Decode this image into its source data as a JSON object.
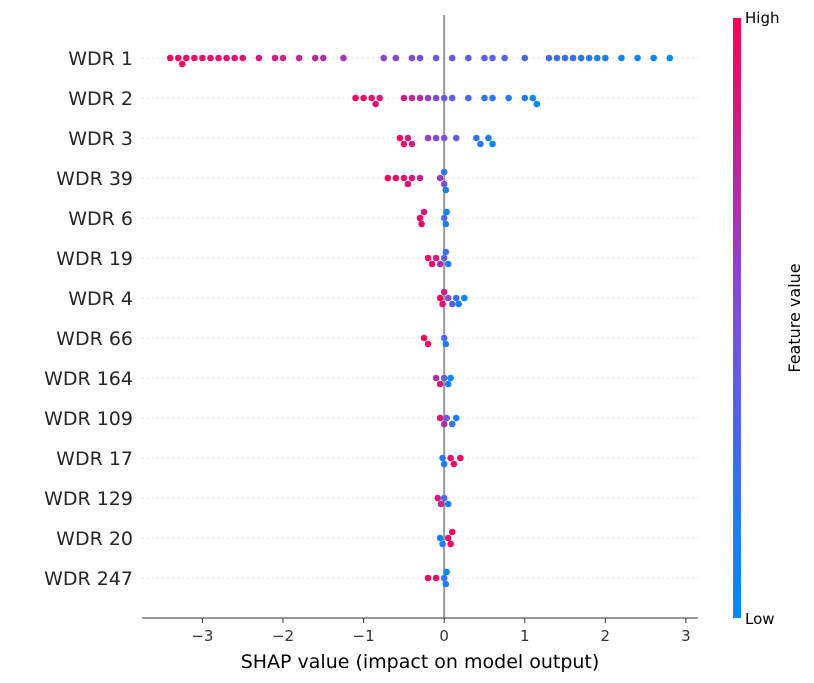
{
  "chart_data": {
    "type": "scatter",
    "subtype": "shap-beeswarm",
    "xlabel": "SHAP value (impact on model output)",
    "xlim": [
      -3.75,
      3.15
    ],
    "xticks": [
      -3,
      -2,
      -1,
      0,
      1,
      2,
      3
    ],
    "xtick_labels": [
      "−3",
      "−2",
      "−1",
      "0",
      "1",
      "2",
      "3"
    ],
    "colorbar": {
      "title": "Feature value",
      "high_label": "High",
      "low_label": "Low",
      "high_color": "#ff0052",
      "low_color": "#008bfb"
    },
    "features": [
      {
        "name": "WDR 1",
        "points": [
          [
            -3.4,
            0.98
          ],
          [
            -3.3,
            0.96
          ],
          [
            -3.25,
            0.95
          ],
          [
            -3.2,
            0.94
          ],
          [
            -3.1,
            0.93
          ],
          [
            -3.0,
            0.92
          ],
          [
            -2.9,
            0.91
          ],
          [
            -2.8,
            0.9
          ],
          [
            -2.7,
            0.89
          ],
          [
            -2.6,
            0.87
          ],
          [
            -2.5,
            0.86
          ],
          [
            -2.3,
            0.83
          ],
          [
            -2.1,
            0.8
          ],
          [
            -2.0,
            0.78
          ],
          [
            -1.8,
            0.76
          ],
          [
            -1.6,
            0.74
          ],
          [
            -1.5,
            0.72
          ],
          [
            -1.25,
            0.66
          ],
          [
            -0.75,
            0.58
          ],
          [
            -0.6,
            0.55
          ],
          [
            -0.4,
            0.52
          ],
          [
            -0.3,
            0.5
          ],
          [
            -0.1,
            0.47
          ],
          [
            0.1,
            0.44
          ],
          [
            0.3,
            0.4
          ],
          [
            0.5,
            0.37
          ],
          [
            0.6,
            0.35
          ],
          [
            0.75,
            0.33
          ],
          [
            1.0,
            0.29
          ],
          [
            1.3,
            0.25
          ],
          [
            1.4,
            0.22
          ],
          [
            1.5,
            0.2
          ],
          [
            1.6,
            0.18
          ],
          [
            1.7,
            0.15
          ],
          [
            1.8,
            0.13
          ],
          [
            1.9,
            0.1
          ],
          [
            2.0,
            0.08
          ],
          [
            2.2,
            0.06
          ],
          [
            2.4,
            0.04
          ],
          [
            2.6,
            0.02
          ],
          [
            2.8,
            0.0
          ]
        ]
      },
      {
        "name": "WDR 2",
        "points": [
          [
            -1.1,
            0.95
          ],
          [
            -1.0,
            0.93
          ],
          [
            -0.9,
            0.9
          ],
          [
            -0.85,
            0.88
          ],
          [
            -0.8,
            0.86
          ],
          [
            -0.5,
            0.8
          ],
          [
            -0.4,
            0.75
          ],
          [
            -0.3,
            0.7
          ],
          [
            -0.2,
            0.62
          ],
          [
            -0.1,
            0.55
          ],
          [
            0.0,
            0.45
          ],
          [
            0.1,
            0.38
          ],
          [
            0.3,
            0.3
          ],
          [
            0.5,
            0.22
          ],
          [
            0.6,
            0.18
          ],
          [
            0.8,
            0.12
          ],
          [
            1.0,
            0.08
          ],
          [
            1.1,
            0.04
          ],
          [
            1.15,
            0.02
          ]
        ]
      },
      {
        "name": "WDR 3",
        "points": [
          [
            -0.55,
            0.95
          ],
          [
            -0.5,
            0.9
          ],
          [
            -0.45,
            0.85
          ],
          [
            -0.4,
            0.78
          ],
          [
            -0.2,
            0.6
          ],
          [
            -0.1,
            0.55
          ],
          [
            0.0,
            0.5
          ],
          [
            0.15,
            0.4
          ],
          [
            0.4,
            0.2
          ],
          [
            0.45,
            0.15
          ],
          [
            0.55,
            0.1
          ],
          [
            0.6,
            0.05
          ]
        ]
      },
      {
        "name": "WDR 39",
        "points": [
          [
            -0.7,
            0.98
          ],
          [
            -0.6,
            0.95
          ],
          [
            -0.5,
            0.92
          ],
          [
            -0.45,
            0.9
          ],
          [
            -0.4,
            0.88
          ],
          [
            -0.3,
            0.8
          ],
          [
            -0.05,
            0.62
          ],
          [
            0.0,
            0.5
          ],
          [
            0.0,
            0.2
          ],
          [
            0.02,
            0.05
          ]
        ]
      },
      {
        "name": "WDR 6",
        "points": [
          [
            -0.3,
            0.95
          ],
          [
            -0.28,
            0.9
          ],
          [
            -0.25,
            0.85
          ],
          [
            0.0,
            0.3
          ],
          [
            0.02,
            0.1
          ],
          [
            0.03,
            0.05
          ]
        ]
      },
      {
        "name": "WDR 19",
        "points": [
          [
            -0.2,
            0.95
          ],
          [
            -0.15,
            0.92
          ],
          [
            -0.1,
            0.85
          ],
          [
            -0.05,
            0.7
          ],
          [
            0.0,
            0.35
          ],
          [
            0.02,
            0.2
          ],
          [
            0.05,
            0.1
          ]
        ]
      },
      {
        "name": "WDR 4",
        "points": [
          [
            -0.05,
            0.95
          ],
          [
            -0.02,
            0.9
          ],
          [
            0.0,
            0.8
          ],
          [
            0.05,
            0.5
          ],
          [
            0.1,
            0.35
          ],
          [
            0.15,
            0.2
          ],
          [
            0.18,
            0.1
          ],
          [
            0.25,
            0.05
          ]
        ]
      },
      {
        "name": "WDR 66",
        "points": [
          [
            -0.25,
            0.95
          ],
          [
            -0.2,
            0.92
          ],
          [
            0.0,
            0.3
          ],
          [
            0.02,
            0.1
          ]
        ]
      },
      {
        "name": "WDR 164",
        "points": [
          [
            -0.1,
            0.7
          ],
          [
            -0.05,
            0.85
          ],
          [
            0.0,
            0.4
          ],
          [
            0.05,
            0.1
          ],
          [
            0.08,
            0.05
          ]
        ]
      },
      {
        "name": "WDR 109",
        "points": [
          [
            -0.05,
            0.9
          ],
          [
            0.0,
            0.7
          ],
          [
            0.03,
            0.4
          ],
          [
            0.1,
            0.2
          ],
          [
            0.15,
            0.1
          ]
        ]
      },
      {
        "name": "WDR 17",
        "points": [
          [
            -0.02,
            0.15
          ],
          [
            0.0,
            0.1
          ],
          [
            0.08,
            0.9
          ],
          [
            0.12,
            0.92
          ],
          [
            0.2,
            0.95
          ]
        ]
      },
      {
        "name": "WDR 129",
        "points": [
          [
            -0.08,
            0.85
          ],
          [
            -0.04,
            0.8
          ],
          [
            0.0,
            0.3
          ],
          [
            0.05,
            0.1
          ]
        ]
      },
      {
        "name": "WDR 20",
        "points": [
          [
            -0.05,
            0.1
          ],
          [
            -0.02,
            0.15
          ],
          [
            0.05,
            0.9
          ],
          [
            0.08,
            0.95
          ],
          [
            0.1,
            0.92
          ]
        ]
      },
      {
        "name": "WDR 247",
        "points": [
          [
            -0.2,
            0.95
          ],
          [
            -0.1,
            0.92
          ],
          [
            0.0,
            0.2
          ],
          [
            0.02,
            0.1
          ],
          [
            0.03,
            0.05
          ]
        ]
      }
    ]
  }
}
